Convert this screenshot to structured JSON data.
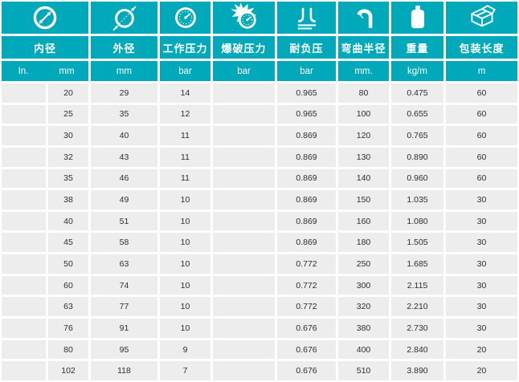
{
  "table": {
    "title": "hose-specification-table",
    "columns": [
      {
        "label": "内径",
        "icon": "inner-diameter-icon"
      },
      {
        "label": "外径",
        "icon": "outer-diameter-icon"
      },
      {
        "label": "工作压力",
        "icon": "pressure-gauge-icon"
      },
      {
        "label": "爆破压力",
        "icon": "burst-pressure-icon"
      },
      {
        "label": "耐负压",
        "icon": "vacuum-icon"
      },
      {
        "label": "弯曲半径",
        "icon": "bend-radius-icon"
      },
      {
        "label": "重量",
        "icon": "weight-icon"
      },
      {
        "label": "包装长度",
        "icon": "package-icon"
      }
    ],
    "units": [
      "In.",
      "mm",
      "mm",
      "bar",
      "bar",
      "bar",
      "mm.",
      "kg/m",
      "m"
    ],
    "rows": [
      [
        "",
        "20",
        "29",
        "14",
        "",
        "0.965",
        "80",
        "0.475",
        "60"
      ],
      [
        "",
        "25",
        "35",
        "12",
        "",
        "0.965",
        "100",
        "0.655",
        "60"
      ],
      [
        "",
        "30",
        "40",
        "11",
        "",
        "0.869",
        "120",
        "0.765",
        "60"
      ],
      [
        "",
        "32",
        "43",
        "11",
        "",
        "0.869",
        "130",
        "0.890",
        "60"
      ],
      [
        "",
        "35",
        "46",
        "11",
        "",
        "0.869",
        "140",
        "0.960",
        "60"
      ],
      [
        "",
        "38",
        "49",
        "10",
        "",
        "0.869",
        "150",
        "1.035",
        "30"
      ],
      [
        "",
        "40",
        "51",
        "10",
        "",
        "0.869",
        "160",
        "1.080",
        "30"
      ],
      [
        "",
        "45",
        "58",
        "10",
        "",
        "0.869",
        "180",
        "1.505",
        "30"
      ],
      [
        "",
        "50",
        "63",
        "10",
        "",
        "0.772",
        "250",
        "1.685",
        "30"
      ],
      [
        "",
        "60",
        "74",
        "10",
        "",
        "0.772",
        "300",
        "2.115",
        "30"
      ],
      [
        "",
        "63",
        "77",
        "10",
        "",
        "0.772",
        "320",
        "2.210",
        "30"
      ],
      [
        "",
        "76",
        "91",
        "10",
        "",
        "0.676",
        "380",
        "2.730",
        "30"
      ],
      [
        "",
        "80",
        "95",
        "9",
        "",
        "0.676",
        "400",
        "2.840",
        "20"
      ],
      [
        "",
        "102",
        "118",
        "7",
        "",
        "0.676",
        "510",
        "3.890",
        "20"
      ]
    ],
    "colors": {
      "header_teal": "#00a9ba",
      "row_gray": "#ededed",
      "text_dark": "#2f2f2f",
      "gap_white": "#ffffff"
    }
  }
}
